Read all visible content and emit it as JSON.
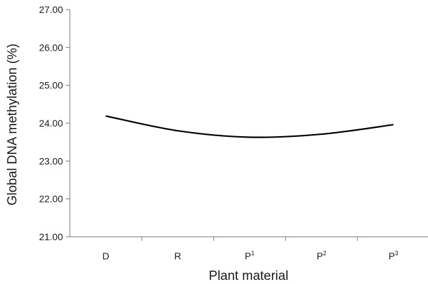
{
  "chart_data": {
    "type": "line",
    "title": "",
    "xlabel": "Plant material",
    "ylabel": "Global DNA methylation (%)",
    "categories": [
      {
        "base": "D",
        "sup": ""
      },
      {
        "base": "R",
        "sup": ""
      },
      {
        "base": "P",
        "sup": "1"
      },
      {
        "base": "P",
        "sup": "2"
      },
      {
        "base": "P",
        "sup": "3"
      }
    ],
    "ylim": [
      21.0,
      27.0
    ],
    "yticks": [
      "21.00",
      "22.00",
      "23.00",
      "24.00",
      "25.00",
      "26.00",
      "27.00"
    ],
    "series": [
      {
        "values": [
          24.19,
          23.8,
          23.63,
          23.71,
          23.96
        ],
        "color": "#000000"
      }
    ],
    "grid": false,
    "legend": "none"
  }
}
